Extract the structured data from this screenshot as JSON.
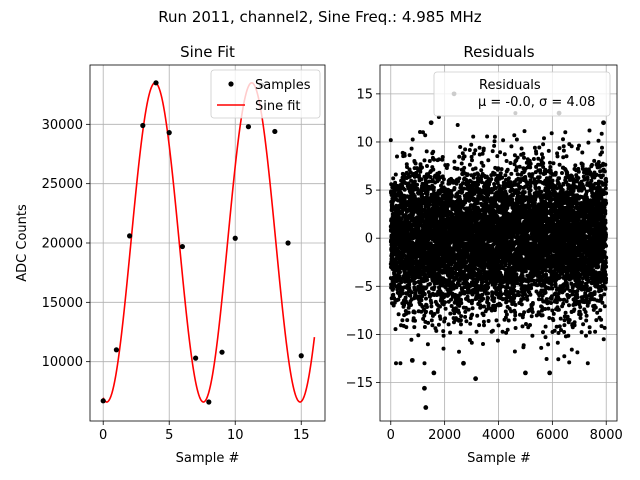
{
  "suptitle": "Run 2011, channel2, Sine Freq.: 4.985 MHz",
  "chart_data": [
    {
      "type": "line",
      "title": "Sine Fit",
      "xlabel": "Sample #",
      "ylabel": "ADC Counts",
      "xlim": [
        -1.0,
        16.8
      ],
      "ylim": [
        5000,
        35000
      ],
      "xticks": [
        0,
        5,
        10,
        15
      ],
      "yticks": [
        10000,
        15000,
        20000,
        25000,
        30000
      ],
      "grid": true,
      "legend_position": "top-right",
      "series": [
        {
          "name": "Samples",
          "style": "markers",
          "color": "#000000",
          "x": [
            0,
            1,
            2,
            3,
            4,
            5,
            6,
            7,
            8,
            9,
            10,
            11,
            12,
            13,
            14,
            15
          ],
          "y": [
            6700,
            11000,
            20600,
            29900,
            33500,
            29300,
            19700,
            10300,
            6600,
            10800,
            20400,
            29800,
            33300,
            29400,
            20000,
            10500
          ]
        },
        {
          "name": "Sine fit",
          "style": "line",
          "color": "#ff0000",
          "model": {
            "offset": 20050,
            "amplitude": 13450,
            "period": 7.32,
            "phase_at_max": 3.93,
            "x_range": [
              0,
              16
            ]
          }
        }
      ]
    },
    {
      "type": "scatter",
      "title": "Residuals",
      "xlabel": "Sample #",
      "ylabel": "",
      "xlim": [
        -400,
        8400
      ],
      "ylim": [
        -19,
        18
      ],
      "xticks": [
        0,
        2000,
        4000,
        6000,
        8000
      ],
      "yticks": [
        -15,
        -10,
        -5,
        0,
        5,
        10,
        15
      ],
      "grid": true,
      "legend_position": "top-right",
      "legend_label": "Residuals",
      "legend_stats": "μ = -0.0, σ = 4.08",
      "stats": {
        "mean": -0.0,
        "std": 4.08,
        "n_points": 8000
      },
      "color": "#000000",
      "outliers": [
        {
          "x": 1300,
          "y": -17.6
        },
        {
          "x": 1250,
          "y": -15.6
        },
        {
          "x": 3150,
          "y": -14.6
        },
        {
          "x": 1600,
          "y": -14.0
        },
        {
          "x": 5000,
          "y": -14.0
        },
        {
          "x": 5900,
          "y": -14.0
        },
        {
          "x": 2350,
          "y": 15.0
        },
        {
          "x": 6250,
          "y": 13.0
        },
        {
          "x": 1500,
          "y": 12.0
        },
        {
          "x": 7900,
          "y": 12.0
        },
        {
          "x": 800,
          "y": -12.7
        },
        {
          "x": 2700,
          "y": -13.0
        }
      ]
    }
  ]
}
